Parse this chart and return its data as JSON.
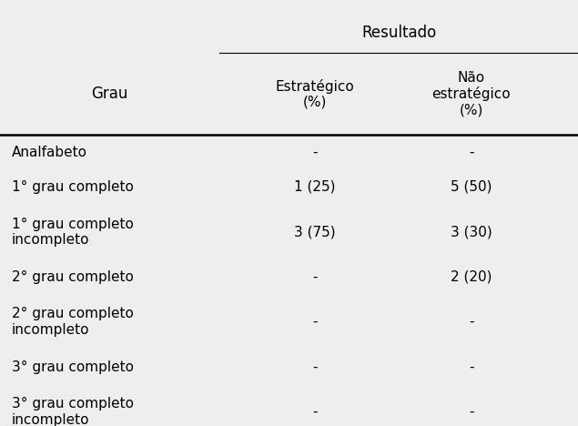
{
  "title_main": "Resultado",
  "col_header_1": "Grau",
  "col_header_2": "Estratégico\n(%)",
  "col_header_3": "Não\nestratégico\n(%)",
  "rows": [
    [
      "Analfabeto",
      "-",
      "-"
    ],
    [
      "1° grau completo",
      "1 (25)",
      "5 (50)"
    ],
    [
      "1° grau completo\nincompleto",
      "3 (75)",
      "3 (30)"
    ],
    [
      "2° grau completo",
      "-",
      "2 (20)"
    ],
    [
      "2° grau completo\nincompleto",
      "-",
      "-"
    ],
    [
      "3° grau completo",
      "-",
      "-"
    ],
    [
      "3° grau completo\nincompleto",
      "-",
      "-"
    ]
  ],
  "bg_color": "#eeeeee",
  "text_color": "#000000",
  "font_size": 11,
  "header_font_size": 11
}
